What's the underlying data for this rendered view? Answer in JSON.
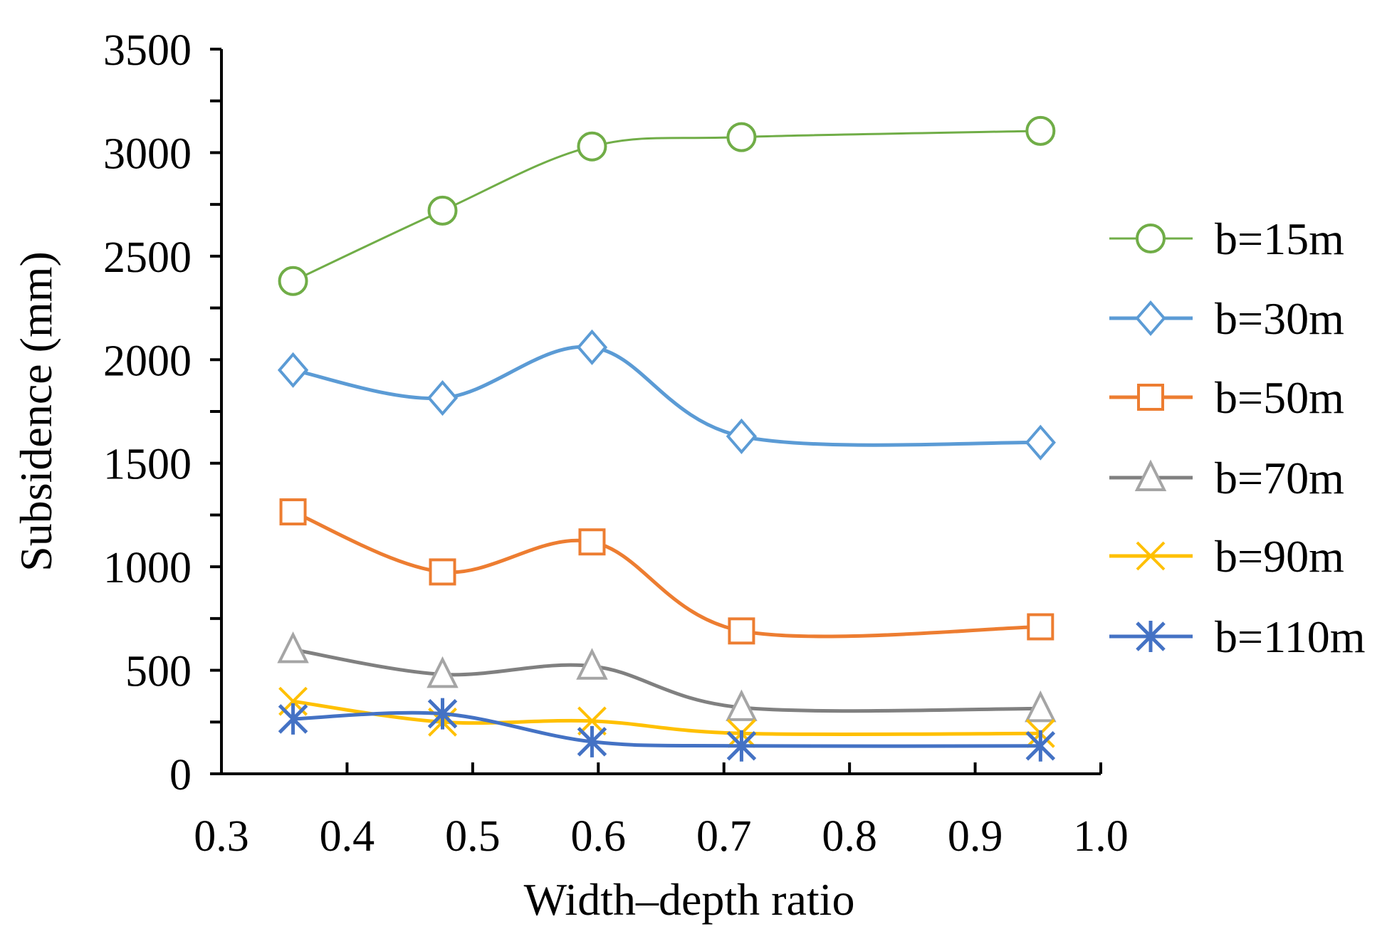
{
  "chart_data": {
    "type": "line",
    "title": "",
    "xlabel": "Width–depth ratio",
    "ylabel": "Subsidence (mm)",
    "xlim": [
      0.3,
      1.0
    ],
    "ylim": [
      0,
      3500
    ],
    "x_ticks": [
      "0.3",
      "0.4",
      "0.5",
      "0.6",
      "0.7",
      "0.8",
      "0.9",
      "1.0"
    ],
    "y_ticks": [
      "0",
      "500",
      "1000",
      "1500",
      "2000",
      "2500",
      "3000",
      "3500"
    ],
    "grid": false,
    "legend_position": "right",
    "x": [
      0.357,
      0.476,
      0.595,
      0.714,
      0.952
    ],
    "series": [
      {
        "name": "b=15m",
        "color": "#70AD47",
        "marker": "circle",
        "values": [
          2380,
          2720,
          3030,
          3075,
          3105
        ]
      },
      {
        "name": "b=30m",
        "color": "#5B9BD5",
        "marker": "diamond",
        "values": [
          1950,
          1815,
          2060,
          1630,
          1600
        ]
      },
      {
        "name": "b=50m",
        "color": "#ED7D31",
        "marker": "square",
        "values": [
          1265,
          975,
          1120,
          690,
          710
        ]
      },
      {
        "name": "b=70m",
        "color": "#A5A5A5",
        "line_color": "#808080",
        "marker": "triangle",
        "values": [
          600,
          480,
          520,
          320,
          315
        ]
      },
      {
        "name": "b=90m",
        "color": "#FFC000",
        "marker": "x",
        "values": [
          350,
          250,
          255,
          195,
          195
        ]
      },
      {
        "name": "b=110m",
        "color": "#4472C4",
        "marker": "star",
        "values": [
          265,
          290,
          155,
          135,
          135
        ]
      }
    ]
  }
}
